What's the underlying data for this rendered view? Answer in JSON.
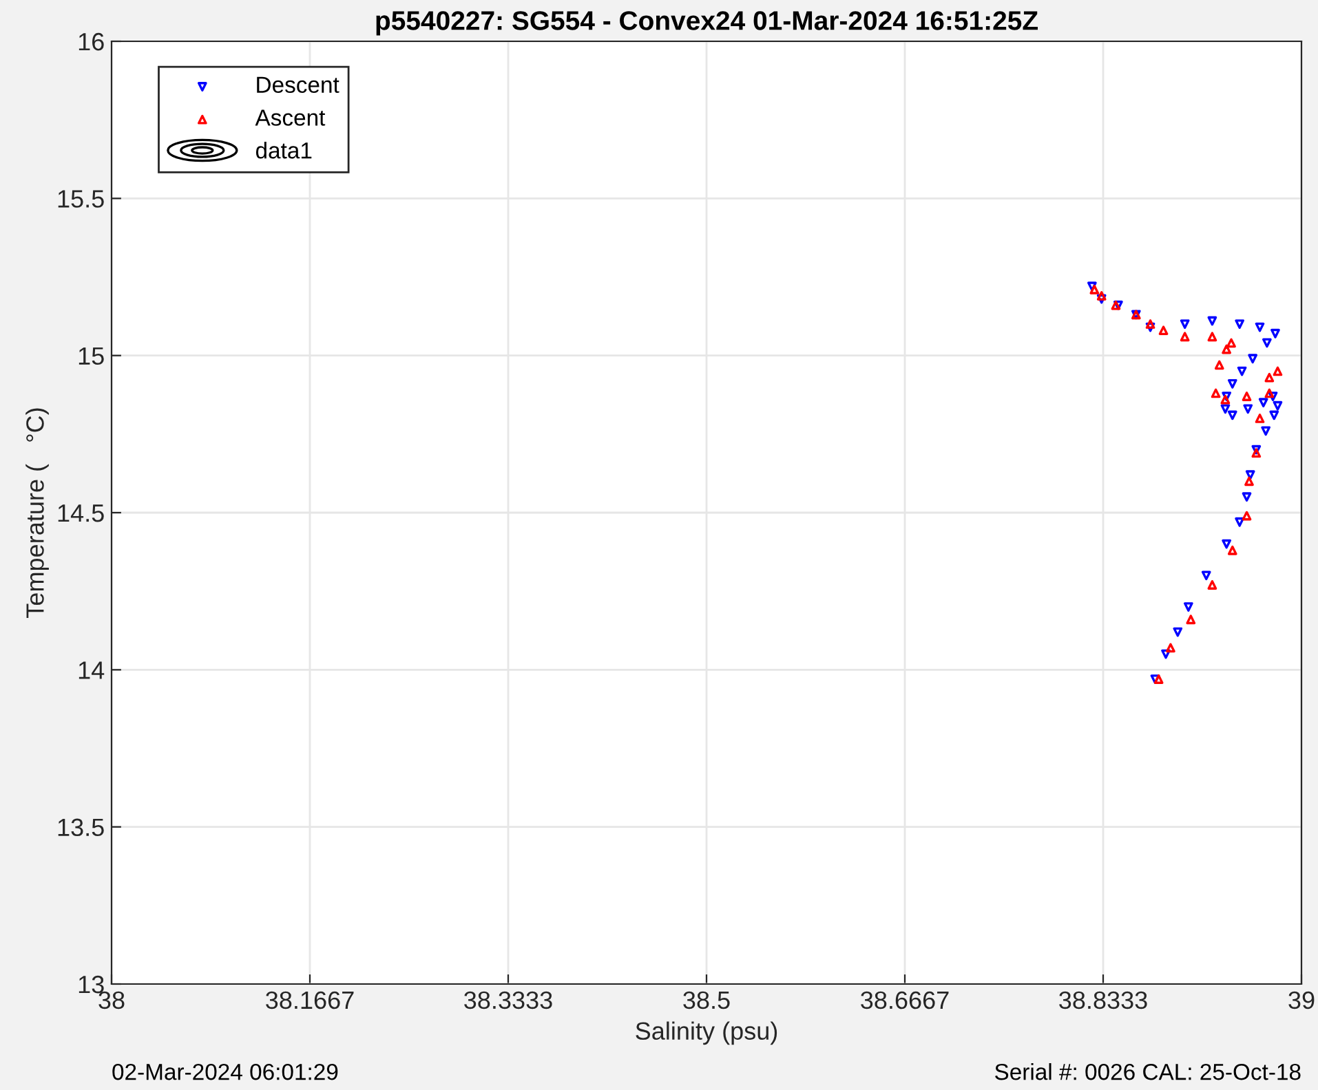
{
  "chart_data": {
    "type": "scatter",
    "title": "p5540227: SG554 - Convex24 01-Mar-2024 16:51:25Z",
    "xlabel": "Salinity (psu)",
    "ylabel": "Temperature (   °C)",
    "xlim": [
      38,
      39
    ],
    "xticks": [
      38,
      {
        "value": 38.16667,
        "label": "38.1667"
      },
      {
        "value": 38.33333,
        "label": "38.3333"
      },
      38.5,
      {
        "value": 38.66667,
        "label": "38.6667"
      },
      {
        "value": 38.83333,
        "label": "38.8333"
      },
      39
    ],
    "ylim": [
      13,
      16
    ],
    "yticks": [
      13,
      13.5,
      14,
      14.5,
      15,
      15.5,
      16
    ],
    "grid": true,
    "legend": "top left",
    "series": [
      {
        "name": "Descent",
        "color": "#0000ff",
        "marker": "triangle_down",
        "x": [
          38.824,
          38.832,
          38.846,
          38.861,
          38.873,
          38.884,
          38.902,
          38.925,
          38.948,
          38.965,
          38.978,
          38.971,
          38.959,
          38.95,
          38.942,
          38.937,
          38.936,
          38.942,
          38.955,
          38.968,
          38.976,
          38.98,
          38.977,
          38.97,
          38.962,
          38.957,
          38.954,
          38.948,
          38.937,
          38.92,
          38.905,
          38.896,
          38.886,
          38.877
        ],
        "values": [
          15.22,
          15.18,
          15.16,
          15.13,
          15.09,
          null,
          15.1,
          15.11,
          15.1,
          15.09,
          15.07,
          15.04,
          14.99,
          14.95,
          14.91,
          14.87,
          14.83,
          14.81,
          14.83,
          14.85,
          14.87,
          14.84,
          14.81,
          14.76,
          14.7,
          14.62,
          14.55,
          14.47,
          14.4,
          14.3,
          14.2,
          14.12,
          14.05,
          13.97
        ]
      },
      {
        "name": "Ascent",
        "color": "#ff0000",
        "marker": "triangle",
        "x": [
          38.88,
          38.89,
          38.907,
          38.925,
          38.942,
          38.954,
          38.956,
          38.962,
          38.965,
          38.973,
          38.98,
          38.973,
          38.954,
          38.936,
          38.928,
          38.931,
          38.937,
          38.941,
          38.925,
          38.902,
          38.884,
          38.873,
          38.861,
          38.844,
          38.832,
          38.826
        ],
        "values": [
          13.97,
          14.07,
          14.16,
          14.27,
          14.38,
          14.49,
          14.6,
          14.69,
          14.8,
          14.88,
          14.95,
          14.93,
          14.87,
          14.86,
          14.88,
          14.97,
          15.02,
          15.04,
          15.06,
          15.06,
          15.08,
          15.1,
          15.13,
          15.16,
          15.19,
          15.21
        ]
      },
      {
        "name": "data1",
        "type": "other",
        "color": "#000000"
      }
    ],
    "annotations": [
      "02-Mar-2024 06:01:29",
      "Serial #: 0026 CAL: 25-Oct-18"
    ]
  }
}
